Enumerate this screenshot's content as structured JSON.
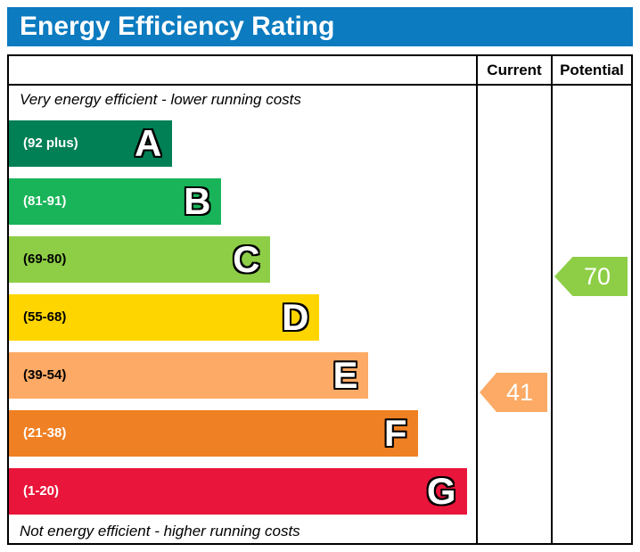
{
  "page_title": "Energy Efficiency Rating",
  "colors": {
    "title_bar_bg": "#0c7bc0",
    "title_text": "#ffffff",
    "border": "#000000"
  },
  "table_headers": {
    "current": "Current",
    "potential": "Potential"
  },
  "chart_data": {
    "type": "bar",
    "orientation": "horizontal",
    "title": "Energy Efficiency Rating",
    "top_annotation": "Very energy efficient - lower running costs",
    "bottom_annotation": "Not energy efficient - higher running costs",
    "columns": [
      "Current",
      "Potential"
    ],
    "bands": [
      {
        "letter": "A",
        "range_label": "(92 plus)",
        "color": "#008054",
        "width": "35%",
        "label_color": "#ffffff"
      },
      {
        "letter": "B",
        "range_label": "(81-91)",
        "color": "#19b459",
        "width": "45.5%",
        "label_color": "#ffffff"
      },
      {
        "letter": "C",
        "range_label": "(69-80)",
        "color": "#8dce46",
        "width": "56%",
        "label_color": "#000000"
      },
      {
        "letter": "D",
        "range_label": "(55-68)",
        "color": "#ffd500",
        "width": "66.5%",
        "label_color": "#000000"
      },
      {
        "letter": "E",
        "range_label": "(39-54)",
        "color": "#fcaa65",
        "width": "77%",
        "label_color": "#000000"
      },
      {
        "letter": "F",
        "range_label": "(21-38)",
        "color": "#ef8023",
        "width": "87.5%",
        "label_color": "#ffffff"
      },
      {
        "letter": "G",
        "range_label": "(1-20)",
        "color": "#e9153b",
        "width": "98%",
        "label_color": "#ffffff"
      }
    ],
    "current": {
      "value": "41",
      "band": "E",
      "color": "#fcaa65"
    },
    "potential": {
      "value": "70",
      "band": "C",
      "color": "#8dce46"
    }
  }
}
